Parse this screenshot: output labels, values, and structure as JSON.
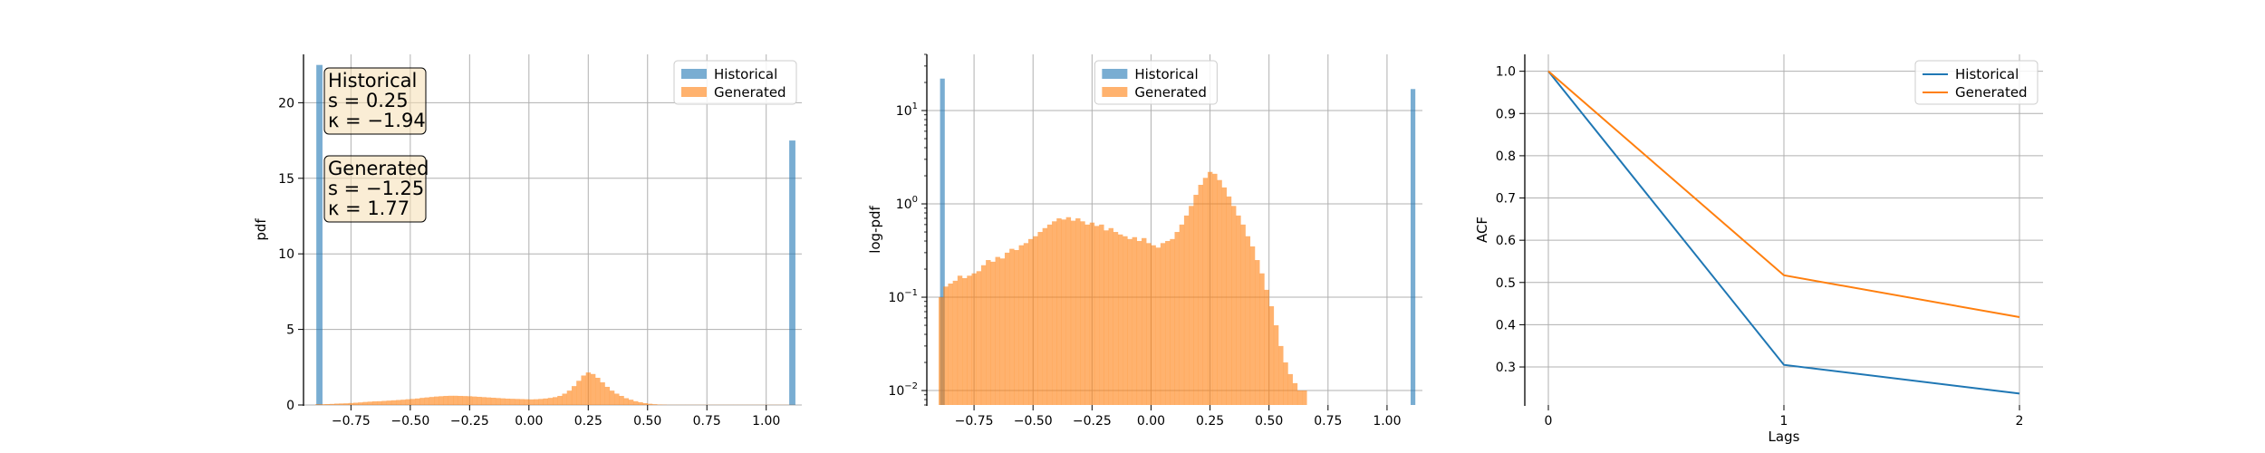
{
  "colors": {
    "historical": "#1f77b4",
    "generated": "#ff7f0e",
    "box_bg": "#f5deb3"
  },
  "chart_data": [
    {
      "type": "bar",
      "id": "hist-linear",
      "xlabel": "",
      "ylabel": "pdf",
      "xlim": [
        -0.95,
        1.15
      ],
      "ylim": [
        0,
        23.2
      ],
      "xticks": [
        -0.75,
        -0.5,
        -0.25,
        0.0,
        0.25,
        0.5,
        0.75,
        1.0
      ],
      "xtick_labels": [
        "−0.75",
        "−0.50",
        "−0.25",
        "0.00",
        "0.25",
        "0.50",
        "0.75",
        "1.00"
      ],
      "yticks": [
        0,
        5,
        10,
        15,
        20
      ],
      "ytick_labels": [
        "0",
        "5",
        "10",
        "15",
        "20"
      ],
      "grid": true,
      "legend": "top-right",
      "legend_entries": [
        "Historical",
        "Generated"
      ],
      "series": [
        {
          "name": "Historical",
          "bar_width": 0.026,
          "bars": [
            {
              "x": -0.883,
              "y": 22.5
            },
            {
              "x": 1.11,
              "y": 17.5
            }
          ]
        },
        {
          "name": "Generated",
          "bins_start": -0.9,
          "bin_width": 0.02,
          "values": [
            0.05,
            0.05,
            0.06,
            0.07,
            0.09,
            0.1,
            0.11,
            0.13,
            0.15,
            0.17,
            0.2,
            0.22,
            0.24,
            0.25,
            0.27,
            0.29,
            0.31,
            0.33,
            0.35,
            0.38,
            0.4,
            0.43,
            0.47,
            0.5,
            0.53,
            0.56,
            0.58,
            0.6,
            0.61,
            0.61,
            0.6,
            0.59,
            0.58,
            0.56,
            0.54,
            0.52,
            0.5,
            0.48,
            0.46,
            0.44,
            0.42,
            0.41,
            0.4,
            0.39,
            0.38,
            0.37,
            0.38,
            0.4,
            0.43,
            0.47,
            0.52,
            0.6,
            0.75,
            0.95,
            1.25,
            1.6,
            1.95,
            2.15,
            2.05,
            1.8,
            1.5,
            1.2,
            0.95,
            0.75,
            0.6,
            0.45,
            0.35,
            0.25,
            0.18,
            0.12,
            0.08,
            0.05,
            0.03,
            0.02,
            0.01,
            0.01,
            0.01,
            0.01,
            0.01,
            0.01,
            0.01,
            0.01,
            0.01,
            0.01,
            0.01,
            0.01,
            0.01,
            0.01,
            0.01,
            0.01,
            0.01,
            0.01,
            0.01,
            0.01,
            0.01,
            0.01,
            0.01,
            0.01,
            0.01,
            0.01,
            0.01
          ]
        }
      ],
      "annotations": [
        {
          "lines": [
            "Historical",
            "s = 0.25",
            "κ = −1.94"
          ]
        },
        {
          "lines": [
            "Generated",
            "s = −1.25",
            "κ = 1.77"
          ]
        }
      ]
    },
    {
      "type": "bar",
      "id": "hist-log",
      "xlabel": "",
      "ylabel": "log-pdf",
      "yscale": "log",
      "xlim": [
        -0.95,
        1.15
      ],
      "ylim": [
        0.007,
        40
      ],
      "xticks": [
        -0.75,
        -0.5,
        -0.25,
        0.0,
        0.25,
        0.5,
        0.75,
        1.0
      ],
      "xtick_labels": [
        "−0.75",
        "−0.50",
        "−0.25",
        "0.00",
        "0.25",
        "0.50",
        "0.75",
        "1.00"
      ],
      "yticks": [
        0.01,
        0.1,
        1,
        10
      ],
      "ytick_labels": [
        "10",
        "10",
        "10",
        "10"
      ],
      "ytick_exponents": [
        "−2",
        "−1",
        "0",
        "1"
      ],
      "grid": true,
      "legend": "top-center",
      "legend_entries": [
        "Historical",
        "Generated"
      ],
      "series": [
        {
          "name": "Historical",
          "bar_width": 0.02,
          "bars": [
            {
              "x": -0.884,
              "y": 22.0
            },
            {
              "x": 1.11,
              "y": 17.0
            }
          ]
        },
        {
          "name": "Generated",
          "bins_start": -0.9,
          "bin_width": 0.02,
          "values": [
            0.1,
            0.13,
            0.14,
            0.15,
            0.17,
            0.16,
            0.17,
            0.18,
            0.19,
            0.22,
            0.25,
            0.24,
            0.27,
            0.26,
            0.3,
            0.33,
            0.32,
            0.36,
            0.38,
            0.42,
            0.45,
            0.5,
            0.55,
            0.6,
            0.65,
            0.7,
            0.68,
            0.72,
            0.66,
            0.7,
            0.65,
            0.6,
            0.63,
            0.58,
            0.6,
            0.52,
            0.55,
            0.5,
            0.47,
            0.45,
            0.42,
            0.44,
            0.4,
            0.43,
            0.38,
            0.36,
            0.34,
            0.38,
            0.4,
            0.42,
            0.5,
            0.6,
            0.75,
            0.95,
            1.25,
            1.6,
            1.9,
            2.2,
            2.1,
            1.8,
            1.5,
            1.2,
            0.95,
            0.75,
            0.6,
            0.45,
            0.35,
            0.25,
            0.18,
            0.12,
            0.08,
            0.05,
            0.03,
            0.02,
            0.015,
            0.012,
            0.01,
            0.01
          ]
        }
      ]
    },
    {
      "type": "line",
      "id": "acf",
      "xlabel": "Lags",
      "ylabel": "ACF",
      "xlim": [
        -0.1,
        2.1
      ],
      "ylim": [
        0.21,
        1.04
      ],
      "xticks": [
        0,
        1,
        2
      ],
      "xtick_labels": [
        "0",
        "1",
        "2"
      ],
      "yticks": [
        0.3,
        0.4,
        0.5,
        0.6,
        0.7,
        0.8,
        0.9,
        1.0
      ],
      "ytick_labels": [
        "0.3",
        "0.4",
        "0.5",
        "0.6",
        "0.7",
        "0.8",
        "0.9",
        "1.0"
      ],
      "grid": true,
      "legend": "top-right",
      "legend_entries": [
        "Historical",
        "Generated"
      ],
      "x": [
        0,
        1,
        2
      ],
      "series": [
        {
          "name": "Historical",
          "values": [
            1.0,
            0.305,
            0.237
          ]
        },
        {
          "name": "Generated",
          "values": [
            1.0,
            0.517,
            0.418
          ]
        }
      ]
    }
  ]
}
